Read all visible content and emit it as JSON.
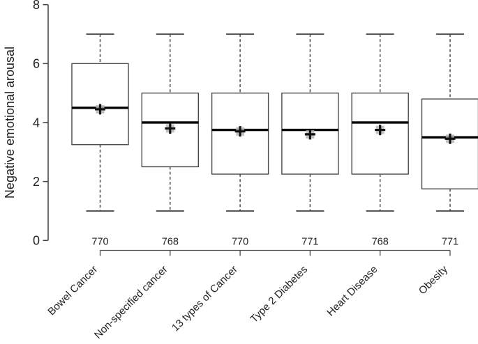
{
  "chart_data": {
    "type": "boxplot",
    "title": "",
    "xlabel": "",
    "ylabel": "Negative emotional arousal",
    "ylim": [
      0,
      8
    ],
    "yticks": [
      0,
      2,
      4,
      6,
      8
    ],
    "grid": false,
    "legend": false,
    "categories": [
      "Bowel Cancer",
      "Non-specified cancer",
      "13 types of Cancer",
      "Type 2 Diabetes",
      "Heart Disease",
      "Obesity"
    ],
    "sample_sizes": [
      "770",
      "768",
      "770",
      "771",
      "768",
      "771"
    ],
    "series": [
      {
        "name": "Bowel Cancer",
        "n": 770,
        "whisker_low": 1,
        "q1": 3.25,
        "median": 4.5,
        "mean": 4.45,
        "q3": 6.0,
        "whisker_high": 7
      },
      {
        "name": "Non-specified cancer",
        "n": 768,
        "whisker_low": 1,
        "q1": 2.5,
        "median": 4.0,
        "mean": 3.8,
        "q3": 5.0,
        "whisker_high": 7
      },
      {
        "name": "13 types of Cancer",
        "n": 770,
        "whisker_low": 1,
        "q1": 2.25,
        "median": 3.75,
        "mean": 3.7,
        "q3": 5.0,
        "whisker_high": 7
      },
      {
        "name": "Type 2 Diabetes",
        "n": 771,
        "whisker_low": 1,
        "q1": 2.25,
        "median": 3.75,
        "mean": 3.6,
        "q3": 5.0,
        "whisker_high": 7
      },
      {
        "name": "Heart Disease",
        "n": 768,
        "whisker_low": 1,
        "q1": 2.25,
        "median": 4.0,
        "mean": 3.75,
        "q3": 5.0,
        "whisker_high": 7
      },
      {
        "name": "Obesity",
        "n": 771,
        "whisker_low": 1,
        "q1": 1.75,
        "median": 3.5,
        "mean": 3.45,
        "q3": 4.8,
        "whisker_high": 7
      }
    ],
    "marker_legend": {
      "plus_marker": "mean",
      "thick_line": "median"
    },
    "colors": {
      "background": "#ffffff",
      "box_stroke": "#4a4a4a",
      "median": "#000000",
      "whisker": "#3f3f3f",
      "mean_cross": "#111111",
      "mean_fill": "#b3b3b3",
      "axis": "#4a4a4a",
      "text": "#222222"
    }
  }
}
